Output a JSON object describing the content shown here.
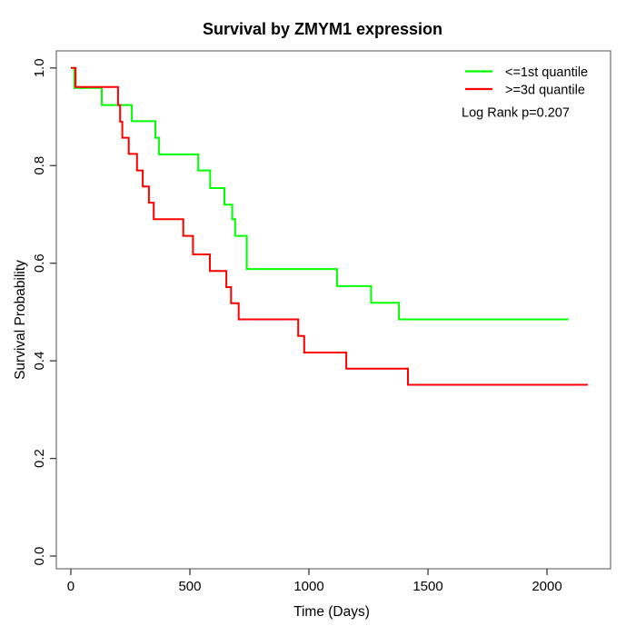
{
  "chart_data": {
    "type": "line",
    "variant": "kaplan_meier_step",
    "title": "Survival by ZMYM1 expression",
    "xlabel": "Time (Days)",
    "ylabel": "Survival Probability",
    "grid": false,
    "xlim": [
      -61,
      2267
    ],
    "ylim": [
      -0.026,
      1.035
    ],
    "x_ticks": [
      {
        "value": 0,
        "label": "0"
      },
      {
        "value": 500,
        "label": "500"
      },
      {
        "value": 1000,
        "label": "1000"
      },
      {
        "value": 1500,
        "label": "1500"
      },
      {
        "value": 2000,
        "label": "2000"
      }
    ],
    "y_ticks": [
      {
        "value": 0.0,
        "label": "0.0"
      },
      {
        "value": 0.2,
        "label": "0.2"
      },
      {
        "value": 0.4,
        "label": "0.4"
      },
      {
        "value": 0.6,
        "label": "0.6"
      },
      {
        "value": 0.8,
        "label": "0.8"
      },
      {
        "value": 1.0,
        "label": "1.0"
      }
    ],
    "legend": {
      "position": "top-right"
    },
    "annotation": {
      "text": "Log Rank p=0.207"
    },
    "series": [
      {
        "name": "<=1st quantile",
        "color": "#00ff00",
        "end_time": 2090,
        "steps": [
          [
            0,
            1.0
          ],
          [
            15,
            0.959
          ],
          [
            130,
            0.924
          ],
          [
            256,
            0.891
          ],
          [
            355,
            0.857
          ],
          [
            370,
            0.823
          ],
          [
            535,
            0.79
          ],
          [
            585,
            0.754
          ],
          [
            645,
            0.72
          ],
          [
            678,
            0.69
          ],
          [
            690,
            0.656
          ],
          [
            739,
            0.588
          ],
          [
            1118,
            0.553
          ],
          [
            1261,
            0.519
          ],
          [
            1378,
            0.485
          ]
        ]
      },
      {
        "name": ">=3d quantile",
        "color": "#ff0000",
        "end_time": 2172,
        "steps": [
          [
            0,
            1.0
          ],
          [
            20,
            0.961
          ],
          [
            198,
            0.924
          ],
          [
            207,
            0.89
          ],
          [
            216,
            0.857
          ],
          [
            243,
            0.824
          ],
          [
            278,
            0.79
          ],
          [
            302,
            0.757
          ],
          [
            328,
            0.724
          ],
          [
            348,
            0.69
          ],
          [
            472,
            0.656
          ],
          [
            513,
            0.618
          ],
          [
            584,
            0.584
          ],
          [
            653,
            0.551
          ],
          [
            673,
            0.518
          ],
          [
            705,
            0.485
          ],
          [
            955,
            0.451
          ],
          [
            980,
            0.417
          ],
          [
            1157,
            0.384
          ],
          [
            1416,
            0.351
          ]
        ]
      }
    ],
    "colors": {
      "axis": "#3a3a3a",
      "border": "#7a7a7a",
      "text": "#000000"
    }
  }
}
